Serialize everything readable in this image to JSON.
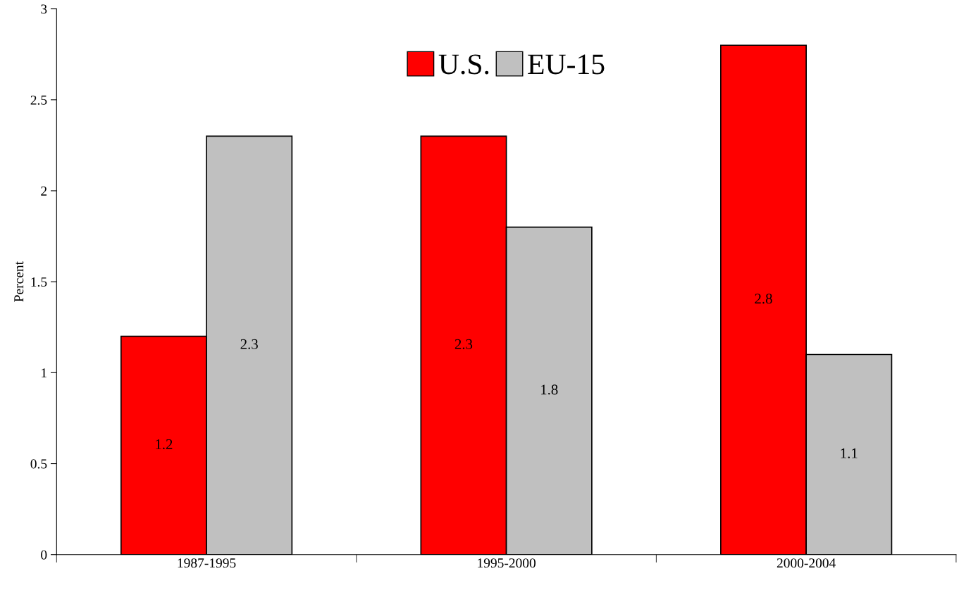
{
  "chart_data": {
    "type": "bar",
    "ylabel": "Percent",
    "categories": [
      "1987-1995",
      "1995-2000",
      "2000-2004"
    ],
    "series": [
      {
        "name": "U.S.",
        "color": "#ff0000",
        "values": [
          1.2,
          2.3,
          2.8
        ]
      },
      {
        "name": "EU-15",
        "color": "#c0c0c0",
        "values": [
          2.3,
          1.8,
          1.1
        ]
      }
    ],
    "ylim": [
      0,
      3
    ],
    "yticks": [
      0,
      0.5,
      1,
      1.5,
      2,
      2.5,
      3
    ],
    "data_labels": true,
    "grid": false,
    "legend": "top"
  }
}
